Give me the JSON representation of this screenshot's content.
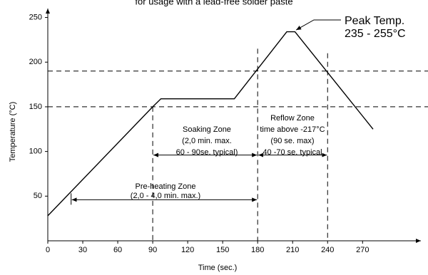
{
  "chart_data": {
    "type": "line",
    "title": "for usage with a lead-free solder paste",
    "x_label": "Time (sec.)",
    "y_label": "Temperature (°C)",
    "x": [
      0,
      90,
      97,
      160,
      205,
      212,
      279
    ],
    "series": [
      {
        "color": "#000000",
        "values": [
          28,
          150,
          159,
          159,
          234,
          234,
          125
        ]
      }
    ],
    "xlim": [
      0,
      320
    ],
    "ylim": [
      0,
      260
    ],
    "xticks": [
      0,
      30,
      60,
      90,
      120,
      150,
      180,
      210,
      240,
      270
    ],
    "yticks": [
      50,
      100,
      150,
      200,
      250
    ],
    "reference_y": [
      190,
      150
    ],
    "reference_x": [
      90,
      180,
      240
    ],
    "zones": [
      {
        "lines": [
          "Soaking Zone",
          "(2,0 min. max.",
          "60 - 90se. typical)"
        ],
        "start": 90,
        "end": 180,
        "level": 96
      },
      {
        "lines": [
          "Reflow Zone",
          "time above -217°C",
          "(90 se. max)",
          "40 -70 se. typical"
        ],
        "start": 180,
        "end": 240,
        "level": 96
      },
      {
        "lines": [
          "Pre-heating Zone",
          "(2,0 - 4,0 min. max.)"
        ],
        "start": 20,
        "end": 180,
        "level": 46
      }
    ],
    "peak": {
      "lines": [
        "Peak Temp.",
        "235 - 255°C"
      ]
    }
  }
}
